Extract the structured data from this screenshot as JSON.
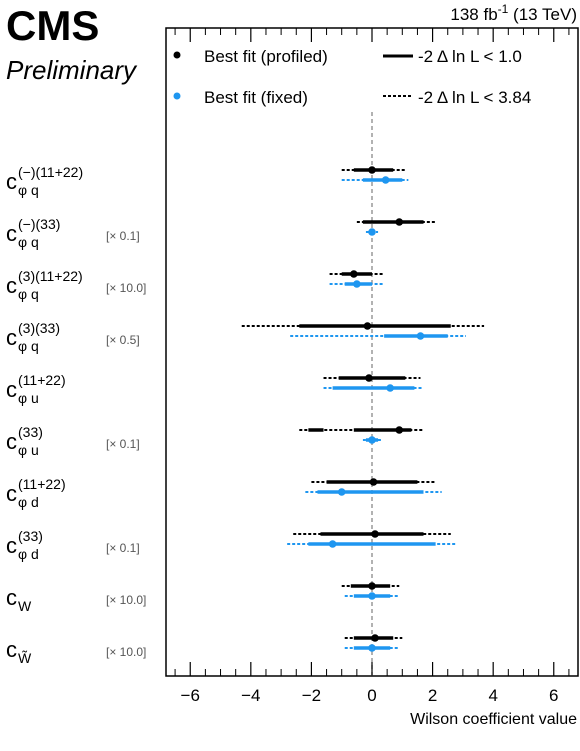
{
  "header": {
    "experiment": "CMS",
    "status": "Preliminary",
    "lumi_base": "138 fb",
    "lumi_exp": "-1",
    "lumi_tail": " (13 TeV)"
  },
  "legend": {
    "profiled": "Best fit (profiled)",
    "fixed": "Best fit (fixed)",
    "cl68": "-2 Δ ln L < 1.0",
    "cl95": "-2 Δ ln L < 3.84"
  },
  "colors": {
    "profiled": "#000000",
    "fixed": "#1e96f0",
    "zero_line": "#999999"
  },
  "chart_data": {
    "type": "scatter",
    "xlabel": "Wilson coefficient value",
    "xlim": [
      -6.8,
      6.8
    ],
    "xticks": [
      -6,
      -4,
      -2,
      0,
      2,
      4,
      6
    ],
    "xtick_labels": [
      "−6",
      "−4",
      "−2",
      "0",
      "2",
      "4",
      "6"
    ],
    "parameters": [
      {
        "base": "c",
        "sup": "(−)(11+22)",
        "sub": "φ q",
        "scale": "",
        "profiled": {
          "best": 0.0,
          "cl68": [
            [
              -0.6,
              0.7
            ]
          ],
          "cl95": [
            [
              -1.0,
              1.1
            ]
          ]
        },
        "fixed": {
          "best": 0.45,
          "cl68": [
            [
              -0.3,
              1.0
            ]
          ],
          "cl95": [
            [
              -1.0,
              1.2
            ]
          ]
        }
      },
      {
        "base": "c",
        "sup": "(−)(33)",
        "sub": "φ q",
        "scale": "[× 0.1]",
        "profiled": {
          "best": 0.9,
          "cl68": [
            [
              -0.3,
              1.7
            ]
          ],
          "cl95": [
            [
              -0.5,
              2.1
            ]
          ]
        },
        "fixed": {
          "best": 0.0,
          "cl68": [
            [
              -0.1,
              0.1
            ]
          ],
          "cl95": [
            [
              -0.2,
              0.2
            ]
          ]
        }
      },
      {
        "base": "c",
        "sup": "(3)(11+22)",
        "sub": "φ q",
        "scale": "[× 10.0]",
        "profiled": {
          "best": -0.6,
          "cl68": [
            [
              -1.0,
              0.0
            ]
          ],
          "cl95": [
            [
              -1.4,
              0.4
            ]
          ]
        },
        "fixed": {
          "best": -0.5,
          "cl68": [
            [
              -0.9,
              0.0
            ]
          ],
          "cl95": [
            [
              -1.4,
              0.4
            ]
          ]
        }
      },
      {
        "base": "c",
        "sup": "(3)(33)",
        "sub": "φ q",
        "scale": "[× 0.5]",
        "profiled": {
          "best": -0.15,
          "cl68": [
            [
              -2.4,
              2.6
            ]
          ],
          "cl95": [
            [
              -4.3,
              3.7
            ]
          ]
        },
        "fixed": {
          "best": 1.6,
          "cl68": [
            [
              0.4,
              2.5
            ]
          ],
          "cl95": [
            [
              -2.7,
              3.1
            ]
          ]
        }
      },
      {
        "base": "c",
        "sup": "(11+22)",
        "sub": "φ u",
        "scale": "",
        "profiled": {
          "best": -0.1,
          "cl68": [
            [
              -1.1,
              1.1
            ]
          ],
          "cl95": [
            [
              -1.6,
              1.6
            ]
          ]
        },
        "fixed": {
          "best": 0.6,
          "cl68": [
            [
              -1.3,
              1.4
            ]
          ],
          "cl95": [
            [
              -1.6,
              1.7
            ]
          ]
        }
      },
      {
        "base": "c",
        "sup": "(33)",
        "sub": "φ u",
        "scale": "[× 0.1]",
        "profiled": {
          "best": 0.9,
          "cl68": [
            [
              -2.1,
              -1.6
            ],
            [
              -0.6,
              1.3
            ]
          ],
          "cl95": [
            [
              -2.4,
              1.7
            ]
          ]
        },
        "fixed": {
          "best": 0.0,
          "cl68": [
            [
              -0.2,
              0.2
            ]
          ],
          "cl95": [
            [
              -0.3,
              0.3
            ]
          ]
        }
      },
      {
        "base": "c",
        "sup": "(11+22)",
        "sub": "φ d",
        "scale": "",
        "profiled": {
          "best": 0.05,
          "cl68": [
            [
              -1.5,
              1.5
            ]
          ],
          "cl95": [
            [
              -2.0,
              2.1
            ]
          ]
        },
        "fixed": {
          "best": -1.0,
          "cl68": [
            [
              -1.8,
              1.7
            ]
          ],
          "cl95": [
            [
              -2.2,
              2.3
            ]
          ]
        }
      },
      {
        "base": "c",
        "sup": "(33)",
        "sub": "φ d",
        "scale": "[× 0.1]",
        "profiled": {
          "best": 0.1,
          "cl68": [
            [
              -1.7,
              1.7
            ]
          ],
          "cl95": [
            [
              -2.6,
              2.6
            ]
          ]
        },
        "fixed": {
          "best": -1.3,
          "cl68": [
            [
              -2.1,
              2.1
            ]
          ],
          "cl95": [
            [
              -2.8,
              2.8
            ]
          ]
        }
      },
      {
        "base": "c",
        "sup": "",
        "sub": "W",
        "scale": "[× 10.0]",
        "profiled": {
          "best": 0.0,
          "cl68": [
            [
              -0.7,
              0.6
            ]
          ],
          "cl95": [
            [
              -1.0,
              0.9
            ]
          ]
        },
        "fixed": {
          "best": 0.0,
          "cl68": [
            [
              -0.6,
              0.6
            ]
          ],
          "cl95": [
            [
              -0.9,
              0.9
            ]
          ]
        }
      },
      {
        "base": "c",
        "sup": "",
        "sub": "W̃",
        "scale": "[× 10.0]",
        "profiled": {
          "best": 0.1,
          "cl68": [
            [
              -0.6,
              0.7
            ]
          ],
          "cl95": [
            [
              -0.9,
              1.0
            ]
          ]
        },
        "fixed": {
          "best": 0.0,
          "cl68": [
            [
              -0.6,
              0.6
            ]
          ],
          "cl95": [
            [
              -0.9,
              0.9
            ]
          ]
        }
      }
    ]
  }
}
